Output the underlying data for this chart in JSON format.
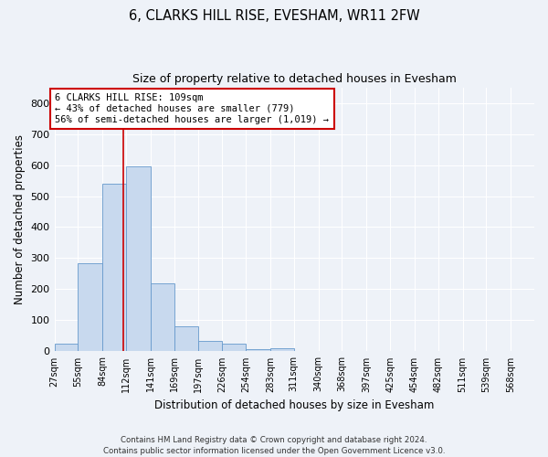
{
  "title_line1": "6, CLARKS HILL RISE, EVESHAM, WR11 2FW",
  "title_line2": "Size of property relative to detached houses in Evesham",
  "xlabel": "Distribution of detached houses by size in Evesham",
  "ylabel": "Number of detached properties",
  "bar_color": "#c8d9ee",
  "bar_edge_color": "#6699cc",
  "property_line_color": "#cc0000",
  "property_size": 109,
  "annotation_line1": "6 CLARKS HILL RISE: 109sqm",
  "annotation_line2": "← 43% of detached houses are smaller (779)",
  "annotation_line3": "56% of semi-detached houses are larger (1,019) →",
  "annotation_box_color": "#ffffff",
  "annotation_box_edge": "#cc0000",
  "bins": [
    27,
    55,
    84,
    112,
    141,
    169,
    197,
    226,
    254,
    283,
    311,
    340,
    368,
    397,
    425,
    454,
    482,
    511,
    539,
    568,
    596
  ],
  "values": [
    25,
    285,
    540,
    595,
    220,
    80,
    35,
    25,
    8,
    10,
    0,
    0,
    0,
    0,
    0,
    0,
    0,
    0,
    0,
    0
  ],
  "footer_text": "Contains HM Land Registry data © Crown copyright and database right 2024.\nContains public sector information licensed under the Open Government Licence v3.0.",
  "background_color": "#eef2f8",
  "ylim": [
    0,
    850
  ],
  "yticks": [
    0,
    100,
    200,
    300,
    400,
    500,
    600,
    700,
    800
  ]
}
